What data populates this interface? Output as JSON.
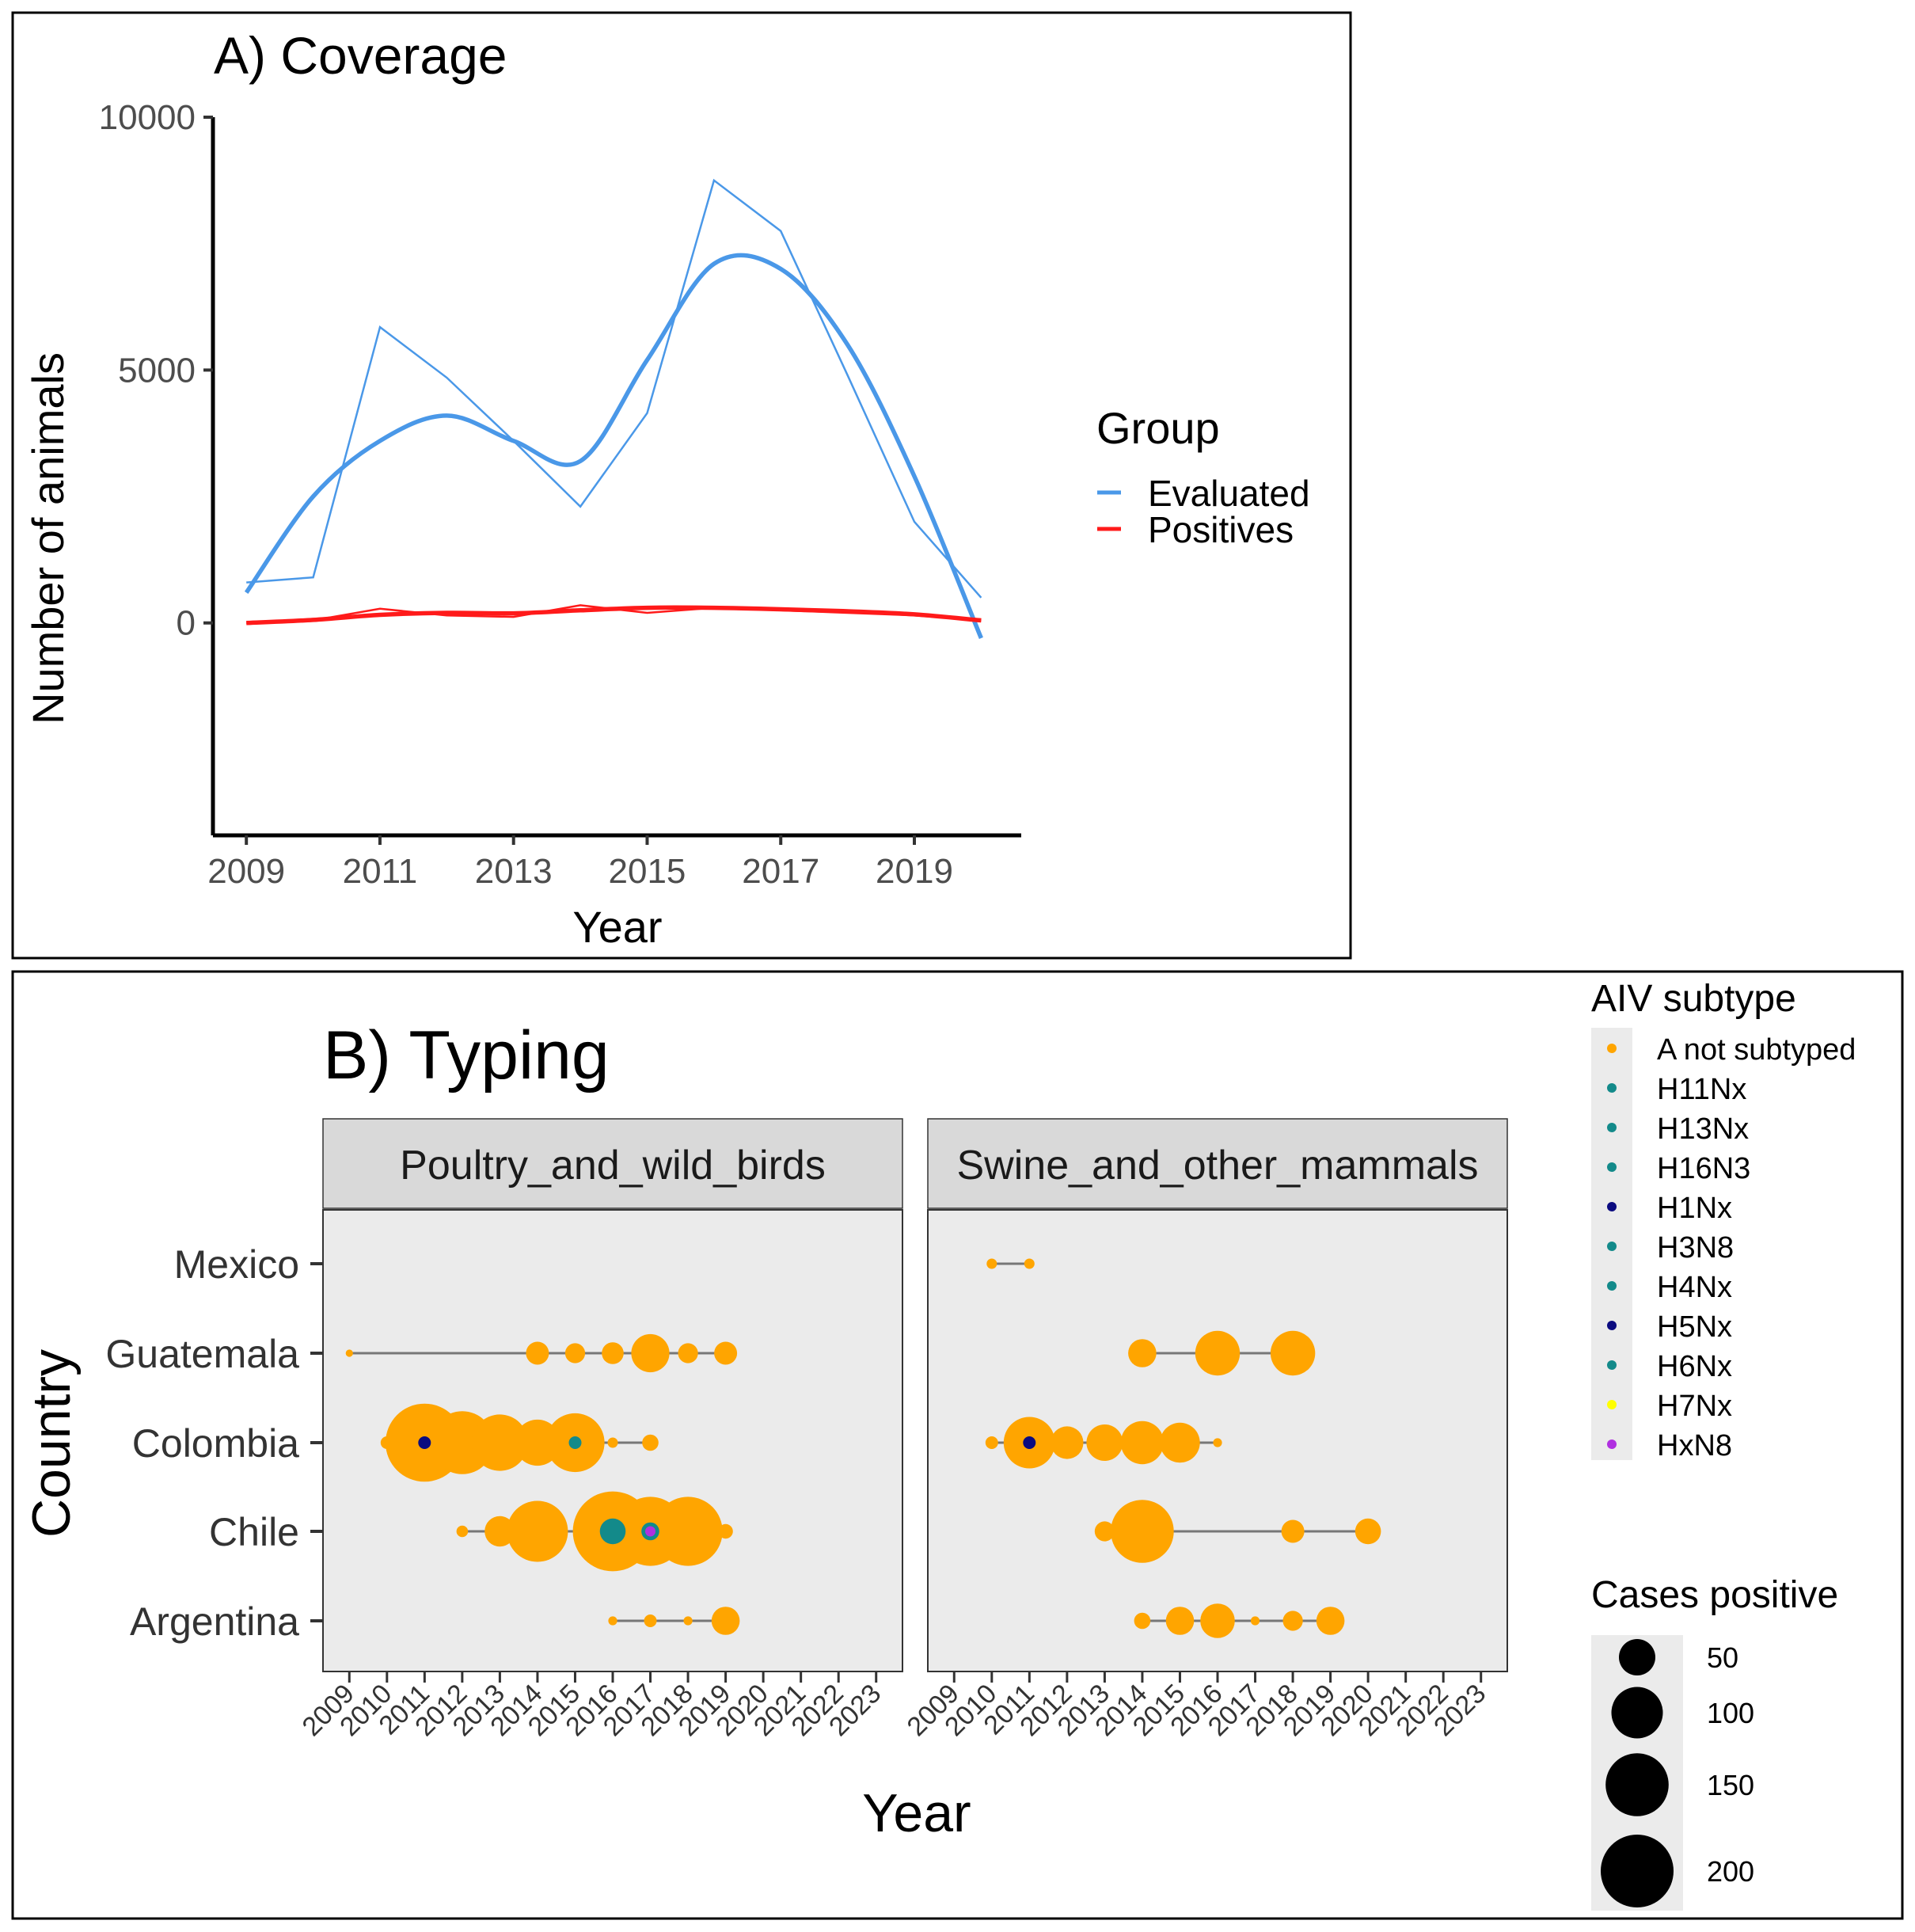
{
  "chart_data": [
    {
      "type": "line",
      "title": "A) Coverage",
      "xlabel": "Year",
      "ylabel": "Number of animals",
      "x_ticks": [
        2009,
        2011,
        2013,
        2015,
        2017,
        2019
      ],
      "y_ticks": [
        0,
        5000,
        10000
      ],
      "xlim": [
        2008.5,
        2020.6
      ],
      "ylim": [
        -4200,
        10000
      ],
      "grid": false,
      "legend": {
        "title": "Group",
        "position": "right",
        "entries": [
          "Evaluated",
          "Positives"
        ]
      },
      "colors": {
        "Evaluated": "#4a98e8",
        "Positives": "#ff1a1a"
      },
      "x": [
        2009,
        2010,
        2011,
        2012,
        2013,
        2014,
        2015,
        2016,
        2017,
        2018,
        2019,
        2020
      ],
      "series": [
        {
          "name": "Evaluated",
          "values": [
            800,
            900,
            5850,
            4850,
            3600,
            2300,
            4150,
            8750,
            7750,
            4900,
            2000,
            500
          ]
        },
        {
          "name": "Positives",
          "values": [
            0,
            50,
            280,
            150,
            120,
            350,
            200,
            300,
            250,
            200,
            150,
            50
          ]
        }
      ],
      "smooth_series": [
        {
          "name": "Evaluated",
          "values": [
            600,
            2500,
            3600,
            4100,
            3600,
            3200,
            5200,
            7100,
            7000,
            5500,
            2900,
            -300
          ]
        },
        {
          "name": "Positives",
          "values": [
            0,
            60,
            160,
            200,
            190,
            250,
            300,
            300,
            270,
            230,
            170,
            50
          ]
        }
      ]
    },
    {
      "type": "scatter",
      "title": "B) Typing",
      "xlabel": "Year",
      "ylabel": "Country",
      "panels": [
        "Poultry_and_wild_birds",
        "Swine_and_other_mammals"
      ],
      "categories": [
        "Mexico",
        "Guatemala",
        "Colombia",
        "Chile",
        "Argentina"
      ],
      "x_ticks": [
        2009,
        2010,
        2011,
        2012,
        2013,
        2014,
        2015,
        2016,
        2017,
        2018,
        2019,
        2020,
        2021,
        2022,
        2023
      ],
      "legend_color": {
        "title": "AIV subtype",
        "entries": [
          {
            "label": "A not subtyped",
            "color": "#ffa500"
          },
          {
            "label": "H11Nx",
            "color": "#138a8a"
          },
          {
            "label": "H13Nx",
            "color": "#138a8a"
          },
          {
            "label": "H16N3",
            "color": "#138a8a"
          },
          {
            "label": "H1Nx",
            "color": "#0b0b80"
          },
          {
            "label": "H3N8",
            "color": "#138a8a"
          },
          {
            "label": "H4Nx",
            "color": "#138a8a"
          },
          {
            "label": "H5Nx",
            "color": "#0b0b80"
          },
          {
            "label": "H6Nx",
            "color": "#138a8a"
          },
          {
            "label": "H7Nx",
            "color": "#ffff00"
          },
          {
            "label": "HxN8",
            "color": "#b030e0"
          }
        ]
      },
      "legend_size": {
        "title": "Cases positive",
        "values": [
          50,
          100,
          150,
          200
        ]
      },
      "points": [
        {
          "panel": 0,
          "country": "Guatemala",
          "year": 2009,
          "cases": 2,
          "subtype": "A not subtyped"
        },
        {
          "panel": 0,
          "country": "Guatemala",
          "year": 2014,
          "cases": 20,
          "subtype": "A not subtyped"
        },
        {
          "panel": 0,
          "country": "Guatemala",
          "year": 2015,
          "cases": 15,
          "subtype": "A not subtyped"
        },
        {
          "panel": 0,
          "country": "Guatemala",
          "year": 2016,
          "cases": 18,
          "subtype": "A not subtyped"
        },
        {
          "panel": 0,
          "country": "Guatemala",
          "year": 2017,
          "cases": 55,
          "subtype": "A not subtyped"
        },
        {
          "panel": 0,
          "country": "Guatemala",
          "year": 2018,
          "cases": 15,
          "subtype": "A not subtyped"
        },
        {
          "panel": 0,
          "country": "Guatemala",
          "year": 2019,
          "cases": 20,
          "subtype": "A not subtyped"
        },
        {
          "panel": 0,
          "country": "Colombia",
          "year": 2010,
          "cases": 6,
          "subtype": "A not subtyped"
        },
        {
          "panel": 0,
          "country": "Colombia",
          "year": 2011,
          "cases": 230,
          "subtype": "A not subtyped"
        },
        {
          "panel": 0,
          "country": "Colombia",
          "year": 2012,
          "cases": 150,
          "subtype": "A not subtyped"
        },
        {
          "panel": 0,
          "country": "Colombia",
          "year": 2013,
          "cases": 120,
          "subtype": "A not subtyped"
        },
        {
          "panel": 0,
          "country": "Colombia",
          "year": 2014,
          "cases": 80,
          "subtype": "A not subtyped"
        },
        {
          "panel": 0,
          "country": "Colombia",
          "year": 2015,
          "cases": 130,
          "subtype": "A not subtyped"
        },
        {
          "panel": 0,
          "country": "Colombia",
          "year": 2016,
          "cases": 4,
          "subtype": "A not subtyped"
        },
        {
          "panel": 0,
          "country": "Colombia",
          "year": 2017,
          "cases": 10,
          "subtype": "A not subtyped"
        },
        {
          "panel": 0,
          "country": "Colombia",
          "year": 2011,
          "cases": 6,
          "subtype": "H5Nx"
        },
        {
          "panel": 0,
          "country": "Colombia",
          "year": 2015,
          "cases": 6,
          "subtype": "H11Nx"
        },
        {
          "panel": 0,
          "country": "Chile",
          "year": 2012,
          "cases": 5,
          "subtype": "A not subtyped"
        },
        {
          "panel": 0,
          "country": "Chile",
          "year": 2013,
          "cases": 35,
          "subtype": "A not subtyped"
        },
        {
          "panel": 0,
          "country": "Chile",
          "year": 2014,
          "cases": 140,
          "subtype": "A not subtyped"
        },
        {
          "panel": 0,
          "country": "Chile",
          "year": 2016,
          "cases": 240,
          "subtype": "A not subtyped"
        },
        {
          "panel": 0,
          "country": "Chile",
          "year": 2017,
          "cases": 180,
          "subtype": "A not subtyped"
        },
        {
          "panel": 0,
          "country": "Chile",
          "year": 2018,
          "cases": 180,
          "subtype": "A not subtyped"
        },
        {
          "panel": 0,
          "country": "Chile",
          "year": 2019,
          "cases": 8,
          "subtype": "A not subtyped"
        },
        {
          "panel": 0,
          "country": "Chile",
          "year": 2016,
          "cases": 25,
          "subtype": "H13Nx"
        },
        {
          "panel": 0,
          "country": "Chile",
          "year": 2017,
          "cases": 12,
          "subtype": "H3N8"
        },
        {
          "panel": 0,
          "country": "Chile",
          "year": 2017,
          "cases": 4,
          "subtype": "HxN8"
        },
        {
          "panel": 0,
          "country": "Argentina",
          "year": 2016,
          "cases": 3,
          "subtype": "A not subtyped"
        },
        {
          "panel": 0,
          "country": "Argentina",
          "year": 2017,
          "cases": 6,
          "subtype": "A not subtyped"
        },
        {
          "panel": 0,
          "country": "Argentina",
          "year": 2018,
          "cases": 3,
          "subtype": "A not subtyped"
        },
        {
          "panel": 0,
          "country": "Argentina",
          "year": 2019,
          "cases": 30,
          "subtype": "A not subtyped"
        },
        {
          "panel": 1,
          "country": "Mexico",
          "year": 2010,
          "cases": 4,
          "subtype": "A not subtyped"
        },
        {
          "panel": 1,
          "country": "Mexico",
          "year": 2011,
          "cases": 4,
          "subtype": "A not subtyped"
        },
        {
          "panel": 1,
          "country": "Guatemala",
          "year": 2014,
          "cases": 30,
          "subtype": "A not subtyped"
        },
        {
          "panel": 1,
          "country": "Guatemala",
          "year": 2016,
          "cases": 75,
          "subtype": "A not subtyped"
        },
        {
          "panel": 1,
          "country": "Guatemala",
          "year": 2018,
          "cases": 75,
          "subtype": "A not subtyped"
        },
        {
          "panel": 1,
          "country": "Colombia",
          "year": 2010,
          "cases": 6,
          "subtype": "A not subtyped"
        },
        {
          "panel": 1,
          "country": "Colombia",
          "year": 2011,
          "cases": 100,
          "subtype": "A not subtyped"
        },
        {
          "panel": 1,
          "country": "Colombia",
          "year": 2012,
          "cases": 40,
          "subtype": "A not subtyped"
        },
        {
          "panel": 1,
          "country": "Colombia",
          "year": 2013,
          "cases": 50,
          "subtype": "A not subtyped"
        },
        {
          "panel": 1,
          "country": "Colombia",
          "year": 2014,
          "cases": 70,
          "subtype": "A not subtyped"
        },
        {
          "panel": 1,
          "country": "Colombia",
          "year": 2015,
          "cases": 60,
          "subtype": "A not subtyped"
        },
        {
          "panel": 1,
          "country": "Colombia",
          "year": 2016,
          "cases": 3,
          "subtype": "A not subtyped"
        },
        {
          "panel": 1,
          "country": "Colombia",
          "year": 2011,
          "cases": 6,
          "subtype": "H1Nx"
        },
        {
          "panel": 1,
          "country": "Chile",
          "year": 2013,
          "cases": 15,
          "subtype": "A not subtyped"
        },
        {
          "panel": 1,
          "country": "Chile",
          "year": 2014,
          "cases": 150,
          "subtype": "A not subtyped"
        },
        {
          "panel": 1,
          "country": "Chile",
          "year": 2018,
          "cases": 20,
          "subtype": "A not subtyped"
        },
        {
          "panel": 1,
          "country": "Chile",
          "year": 2020,
          "cases": 25,
          "subtype": "A not subtyped"
        },
        {
          "panel": 1,
          "country": "Argentina",
          "year": 2014,
          "cases": 10,
          "subtype": "A not subtyped"
        },
        {
          "panel": 1,
          "country": "Argentina",
          "year": 2015,
          "cases": 30,
          "subtype": "A not subtyped"
        },
        {
          "panel": 1,
          "country": "Argentina",
          "year": 2016,
          "cases": 45,
          "subtype": "A not subtyped"
        },
        {
          "panel": 1,
          "country": "Argentina",
          "year": 2017,
          "cases": 3,
          "subtype": "A not subtyped"
        },
        {
          "panel": 1,
          "country": "Argentina",
          "year": 2018,
          "cases": 15,
          "subtype": "A not subtyped"
        },
        {
          "panel": 1,
          "country": "Argentina",
          "year": 2019,
          "cases": 30,
          "subtype": "A not subtyped"
        }
      ]
    }
  ]
}
